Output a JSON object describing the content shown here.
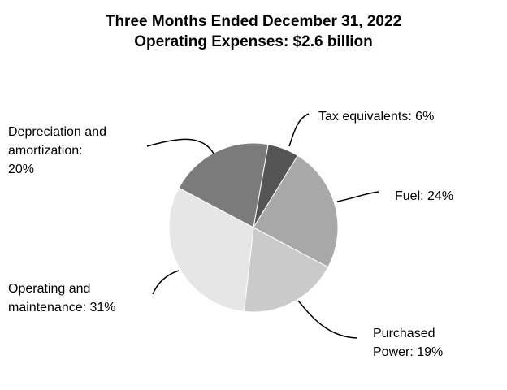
{
  "chart_data": {
    "type": "pie",
    "title": "Three Months Ended December 31, 2022",
    "subtitle": "Operating Expenses: $2.6 billion",
    "slices": [
      {
        "key": "tax",
        "label_lines": [
          "Tax equivalents: 6%"
        ],
        "value": 6,
        "color": "#555555"
      },
      {
        "key": "fuel",
        "label_lines": [
          "Fuel: 24%"
        ],
        "value": 24,
        "color": "#a8a8a8"
      },
      {
        "key": "purchased-power",
        "label_lines": [
          "Purchased",
          "Power: 19%"
        ],
        "value": 19,
        "color": "#cacaca"
      },
      {
        "key": "om",
        "label_lines": [
          "Operating and",
          "maintenance: 31%"
        ],
        "value": 31,
        "color": "#e6e6e6"
      },
      {
        "key": "depreciation",
        "label_lines": [
          "Depreciation and",
          "amortization:",
          "20%"
        ],
        "value": 20,
        "color": "#7b7b7b"
      }
    ],
    "start_angle_deg": 10,
    "direction": "clockwise",
    "legend": "none"
  }
}
